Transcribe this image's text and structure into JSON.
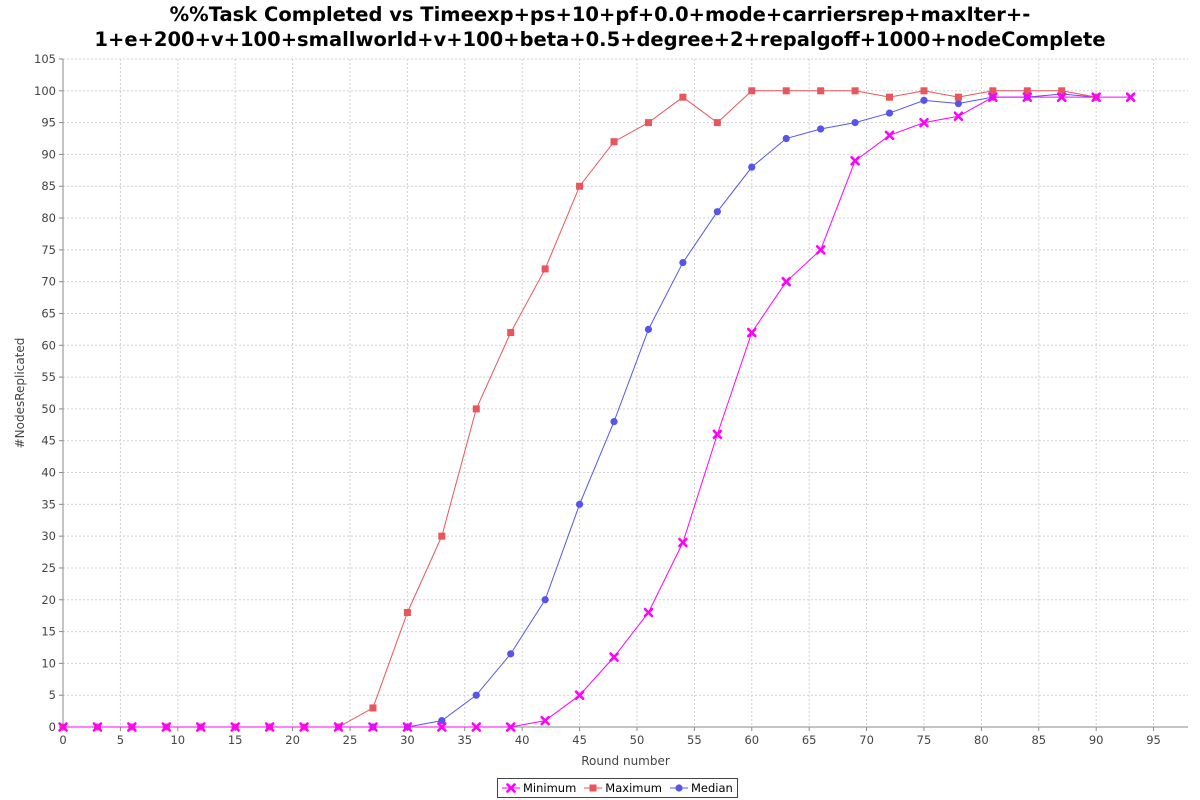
{
  "chart_data": {
    "type": "line",
    "title_line1": "%%Task Completed vs Timeexp+ps+10+pf+0.0+mode+carriersrep+maxIter+-",
    "title_line2": "1+e+200+v+100+smallworld+v+100+beta+0.5+degree+2+repalgoff+1000+nodeComplete",
    "xlabel": "Round number",
    "ylabel": "#NodesReplicated",
    "xlim": [
      0,
      98
    ],
    "ylim": [
      0,
      105
    ],
    "x_ticks": [
      0,
      5,
      10,
      15,
      20,
      25,
      30,
      35,
      40,
      45,
      50,
      55,
      60,
      65,
      70,
      75,
      80,
      85,
      90,
      95
    ],
    "y_ticks": [
      0,
      5,
      10,
      15,
      20,
      25,
      30,
      35,
      40,
      45,
      50,
      55,
      60,
      65,
      70,
      75,
      80,
      85,
      90,
      95,
      100,
      105
    ],
    "grid": true,
    "legend_position": "bottom-center",
    "series": [
      {
        "name": "Minimum",
        "color": "#ff00ff",
        "marker": "x",
        "points": [
          [
            0,
            0
          ],
          [
            3,
            0
          ],
          [
            6,
            0
          ],
          [
            9,
            0
          ],
          [
            12,
            0
          ],
          [
            15,
            0
          ],
          [
            18,
            0
          ],
          [
            21,
            0
          ],
          [
            24,
            0
          ],
          [
            27,
            0
          ],
          [
            30,
            0
          ],
          [
            33,
            0
          ],
          [
            36,
            0
          ],
          [
            39,
            0
          ],
          [
            42,
            1
          ],
          [
            45,
            5
          ],
          [
            48,
            11
          ],
          [
            51,
            18
          ],
          [
            54,
            29
          ],
          [
            57,
            46
          ],
          [
            60,
            62
          ],
          [
            63,
            70
          ],
          [
            66,
            75
          ],
          [
            69,
            89
          ],
          [
            72,
            93
          ],
          [
            75,
            95
          ],
          [
            78,
            96
          ],
          [
            81,
            99
          ],
          [
            84,
            99
          ],
          [
            87,
            99
          ],
          [
            90,
            99
          ],
          [
            93,
            99
          ]
        ]
      },
      {
        "name": "Maximum",
        "color": "#e8555a",
        "marker": "square",
        "points": [
          [
            0,
            0
          ],
          [
            3,
            0
          ],
          [
            6,
            0
          ],
          [
            9,
            0
          ],
          [
            12,
            0
          ],
          [
            15,
            0
          ],
          [
            18,
            0
          ],
          [
            21,
            0
          ],
          [
            24,
            0
          ],
          [
            27,
            3
          ],
          [
            30,
            18
          ],
          [
            33,
            30
          ],
          [
            36,
            50
          ],
          [
            39,
            62
          ],
          [
            42,
            72
          ],
          [
            45,
            85
          ],
          [
            48,
            92
          ],
          [
            51,
            95
          ],
          [
            54,
            99
          ],
          [
            57,
            95
          ],
          [
            60,
            100
          ],
          [
            63,
            100
          ],
          [
            66,
            100
          ],
          [
            69,
            100
          ],
          [
            72,
            99
          ],
          [
            75,
            100
          ],
          [
            78,
            99
          ],
          [
            81,
            100
          ],
          [
            84,
            100
          ],
          [
            87,
            100
          ],
          [
            90,
            99
          ]
        ]
      },
      {
        "name": "Median",
        "color": "#5555ee",
        "marker": "circle",
        "points": [
          [
            0,
            0
          ],
          [
            3,
            0
          ],
          [
            6,
            0
          ],
          [
            9,
            0
          ],
          [
            12,
            0
          ],
          [
            15,
            0
          ],
          [
            18,
            0
          ],
          [
            21,
            0
          ],
          [
            24,
            0
          ],
          [
            27,
            0
          ],
          [
            30,
            0
          ],
          [
            33,
            1
          ],
          [
            36,
            5
          ],
          [
            39,
            11.5
          ],
          [
            42,
            20
          ],
          [
            45,
            35
          ],
          [
            48,
            48
          ],
          [
            51,
            62.5
          ],
          [
            54,
            73
          ],
          [
            57,
            81
          ],
          [
            60,
            88
          ],
          [
            63,
            92.5
          ],
          [
            66,
            94
          ],
          [
            69,
            95
          ],
          [
            72,
            96.5
          ],
          [
            75,
            98.5
          ],
          [
            78,
            98
          ],
          [
            81,
            99
          ],
          [
            84,
            99
          ],
          [
            87,
            99.5
          ],
          [
            90,
            99
          ]
        ]
      }
    ]
  }
}
